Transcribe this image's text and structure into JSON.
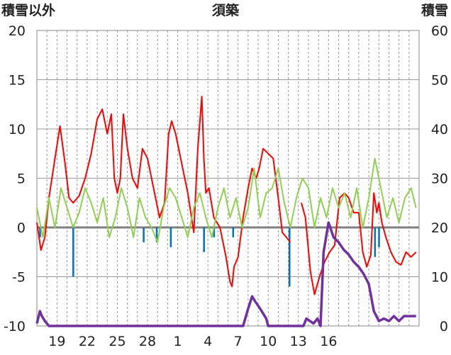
{
  "chart_data": {
    "type": "line",
    "title": "須築",
    "ylabel_left": "積雪以外",
    "ylabel_right": "積雪",
    "ylim_left": [
      -10,
      20
    ],
    "ylim_right": [
      0,
      60
    ],
    "yticks_left": [
      "20",
      "15",
      "10",
      "5",
      "0",
      "-5",
      "-10"
    ],
    "yticks_right": [
      "60",
      "50",
      "40",
      "30",
      "20",
      "10",
      "0"
    ],
    "xticks": [
      "19",
      "22",
      "25",
      "28",
      "1",
      "4",
      "7",
      "10",
      "13",
      "16"
    ],
    "grid": true,
    "colors": {
      "temperature": "#ff0000",
      "wind": "#92d050",
      "precip": "#0070c0",
      "snow": "#7030a0",
      "zero": "#808080"
    },
    "series": [
      {
        "axis": "left",
        "color": "#ff0000",
        "x": [
          0,
          0.4,
          0.8,
          1.2,
          1.8,
          2.3,
          2.8,
          3.2,
          3.6,
          4.2,
          4.8,
          5.4,
          6.0,
          6.5,
          7.0,
          7.4,
          7.7,
          8.0,
          8.3,
          8.6,
          9.0,
          9.5,
          10.0,
          10.5,
          11.0,
          11.6,
          12.2,
          12.7,
          13.1,
          13.4,
          13.8,
          14.3,
          15.0,
          15.6,
          16.0,
          16.4,
          16.6,
          16.8,
          17.1,
          17.6,
          18.2,
          18.8,
          19.2,
          19.4,
          19.6,
          20.0,
          20.5,
          21.0,
          21.4,
          21.8,
          22.1,
          22.5,
          23.0,
          23.5,
          24.0,
          24.4,
          24.8,
          25.2,
          25.8,
          26.3,
          26.7,
          27.2,
          27.6,
          28.1,
          28.6,
          29.1,
          29.6,
          30.1,
          30.6,
          31.0,
          31.5,
          32.0,
          32.4,
          32.8,
          33.2,
          33.5,
          33.8,
          34.0,
          34.3,
          34.7,
          35.2,
          35.7,
          36.2,
          36.7,
          37.2,
          37.7
        ],
        "values": [
          0.5,
          -2.3,
          -1.0,
          3.0,
          7.0,
          10.3,
          6.5,
          3.0,
          2.5,
          3.2,
          5.0,
          7.5,
          11.0,
          12.0,
          9.5,
          11.5,
          5.0,
          3.5,
          5.0,
          11.5,
          8.0,
          5.0,
          4.0,
          8.0,
          7.0,
          4.0,
          1.0,
          2.5,
          9.5,
          10.8,
          9.5,
          7.0,
          3.5,
          -0.5,
          8.0,
          13.3,
          7.0,
          3.5,
          4.0,
          1.0,
          0.0,
          -3.0,
          -5.5,
          -6.0,
          -4.0,
          -3.0,
          1.0,
          4.0,
          6.0,
          5.0,
          6.0,
          8.0,
          7.5,
          7.0,
          3.0,
          -0.5,
          -1.0,
          -1.5,
          null,
          2.5,
          1.0,
          -4.5,
          -6.8,
          -5.0,
          -3.5,
          -2.5,
          -1.8,
          3.0,
          3.5,
          3.0,
          1.5,
          1.5,
          -2.5,
          -4.0,
          -2.8,
          3.5,
          1.5,
          2.5,
          0.5,
          -1.0,
          -2.5,
          -3.5,
          -3.8,
          -2.5,
          -3.0,
          -2.5
        ]
      },
      {
        "axis": "left",
        "color": "#92d050",
        "x": [
          0,
          0.6,
          1.2,
          1.8,
          2.4,
          3.0,
          3.6,
          4.2,
          4.8,
          5.4,
          6.0,
          6.6,
          7.2,
          7.8,
          8.4,
          9.0,
          9.6,
          10.2,
          10.8,
          11.4,
          12.0,
          12.6,
          13.2,
          13.8,
          14.4,
          15.0,
          15.6,
          16.2,
          16.8,
          17.4,
          18.0,
          18.6,
          19.2,
          19.8,
          20.4,
          21.0,
          21.6,
          22.2,
          22.8,
          23.4,
          24.0,
          24.6,
          25.2,
          25.8,
          26.4,
          27.0,
          27.6,
          28.2,
          28.8,
          29.4,
          30.0,
          30.6,
          31.2,
          31.8,
          32.4,
          33.0,
          33.6,
          34.2,
          34.8,
          35.4,
          36.0,
          36.6,
          37.2,
          37.7
        ],
        "values": [
          2.0,
          -1.0,
          3.0,
          0.0,
          4.0,
          2.0,
          0.0,
          1.5,
          4.0,
          2.5,
          0.5,
          3.0,
          -1.0,
          1.0,
          4.0,
          2.0,
          -1.0,
          3.0,
          1.0,
          0.0,
          -1.5,
          2.0,
          4.0,
          3.0,
          1.0,
          -1.0,
          2.0,
          3.5,
          1.0,
          -1.0,
          2.0,
          4.0,
          1.0,
          3.0,
          0.0,
          2.0,
          6.0,
          1.0,
          3.5,
          4.0,
          6.0,
          2.5,
          0.0,
          3.0,
          5.0,
          4.0,
          0.0,
          3.0,
          1.0,
          4.0,
          2.0,
          3.5,
          1.0,
          4.0,
          0.0,
          3.0,
          7.0,
          4.0,
          1.0,
          3.0,
          0.5,
          3.0,
          4.0,
          2.0
        ]
      },
      {
        "axis": "right",
        "color": "#7030a0",
        "x": [
          0,
          0.3,
          0.5,
          0.8,
          1.2,
          1.8,
          20.5,
          21.0,
          21.4,
          21.7,
          22.2,
          22.8,
          23.0,
          26.5,
          26.8,
          27.5,
          27.9,
          28.2,
          28.5,
          29.0,
          29.5,
          30.0,
          30.5,
          31.0,
          31.5,
          32.0,
          32.5,
          33.0,
          33.5,
          34.0,
          34.5,
          35.0,
          35.5,
          36.0,
          36.5,
          37.0,
          37.7
        ],
        "values": [
          0.5,
          3.0,
          2.0,
          1.0,
          0.0,
          0.0,
          0.0,
          3.5,
          6.0,
          5.0,
          3.5,
          1.5,
          0.0,
          0.0,
          1.5,
          0.5,
          1.5,
          0.0,
          15.0,
          21.0,
          18.0,
          17.0,
          15.5,
          14.5,
          13.0,
          12.0,
          10.5,
          8.5,
          3.0,
          1.0,
          1.5,
          1.0,
          2.0,
          1.0,
          2.0,
          2.0,
          2.0
        ]
      }
    ],
    "bars": {
      "axis": "left",
      "color": "#0070c0",
      "x": [
        0.3,
        3.6,
        10.6,
        11.9,
        13.3,
        16.6,
        17.6,
        19.5,
        25.1,
        33.6,
        34.0
      ],
      "values": [
        -1.0,
        -5.0,
        -1.5,
        -1.5,
        -2.0,
        -2.5,
        -1.0,
        -1.0,
        -6.0,
        -3.0,
        -2.0
      ]
    }
  }
}
